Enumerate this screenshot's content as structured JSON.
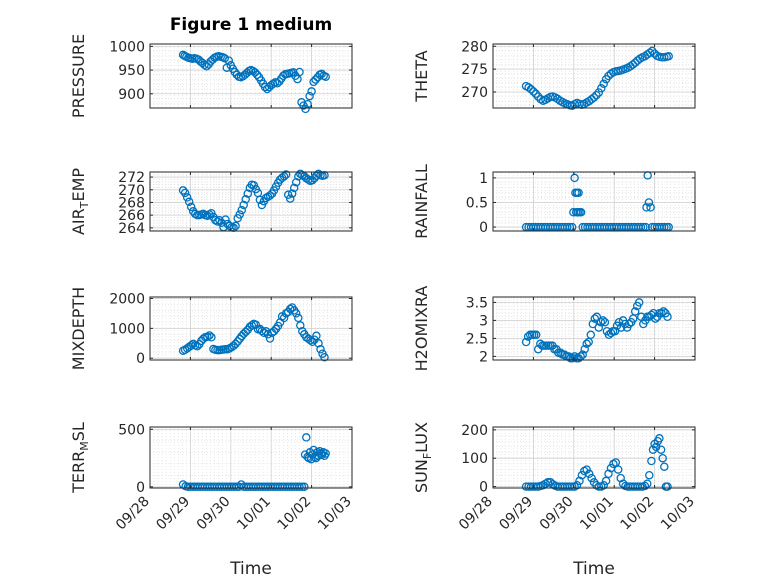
{
  "figure_title": "Figure 1 medium",
  "time_ticks": [
    "09/28",
    "09/29",
    "09/30",
    "10/01",
    "10/02",
    "10/03"
  ],
  "colors": {
    "marker": "#0072BD",
    "axis": "#262626",
    "grid": "#d9d9d9"
  },
  "chart_data": [
    {
      "type": "scatter",
      "title": "Figure 1 medium",
      "ylabel": "PRESSURE",
      "ylabel_parts": [
        "PRESSURE"
      ],
      "xlabel": "",
      "xlim": [
        0,
        5
      ],
      "ylim": [
        870,
        1005
      ],
      "yticks": [
        900,
        950,
        1000
      ],
      "xtick_labels_shown": false,
      "x": [
        0.82,
        0.86,
        0.9,
        0.95,
        1.0,
        1.05,
        1.1,
        1.15,
        1.2,
        1.25,
        1.3,
        1.35,
        1.4,
        1.45,
        1.5,
        1.55,
        1.6,
        1.65,
        1.7,
        1.75,
        1.8,
        1.85,
        1.9,
        1.95,
        2.0,
        2.05,
        2.1,
        2.15,
        2.2,
        2.25,
        2.3,
        2.35,
        2.4,
        2.45,
        2.5,
        2.55,
        2.6,
        2.65,
        2.7,
        2.75,
        2.8,
        2.85,
        2.9,
        2.95,
        3.0,
        3.05,
        3.1,
        3.15,
        3.2,
        3.25,
        3.3,
        3.35,
        3.4,
        3.45,
        3.5,
        3.55,
        3.6,
        3.65,
        3.7,
        3.75,
        3.8,
        3.85,
        3.9,
        3.95,
        4.0,
        4.05,
        4.1,
        4.15,
        4.2,
        4.25,
        4.3,
        4.35
      ],
      "y": [
        982,
        980,
        978,
        976,
        975,
        974,
        975,
        974,
        972,
        968,
        965,
        961,
        958,
        962,
        968,
        972,
        976,
        978,
        979,
        978,
        977,
        975,
        955,
        970,
        960,
        953,
        946,
        940,
        936,
        935,
        937,
        940,
        944,
        948,
        950,
        948,
        945,
        940,
        935,
        928,
        921,
        914,
        910,
        914,
        918,
        921,
        924,
        922,
        926,
        932,
        938,
        941,
        942,
        943,
        944,
        945,
        938,
        931,
        946,
        882,
        875,
        868,
        878,
        895,
        905,
        925,
        930,
        935,
        940,
        942,
        938,
        936
      ]
    },
    {
      "type": "scatter",
      "title": "",
      "ylabel": "THETA",
      "ylabel_parts": [
        "THETA"
      ],
      "xlabel": "",
      "xlim": [
        0,
        5
      ],
      "ylim": [
        266.5,
        280.5
      ],
      "yticks": [
        270,
        275,
        280
      ],
      "xtick_labels_shown": false,
      "x": [
        0.82,
        0.88,
        0.94,
        1.0,
        1.06,
        1.12,
        1.18,
        1.24,
        1.3,
        1.36,
        1.42,
        1.48,
        1.54,
        1.6,
        1.66,
        1.72,
        1.78,
        1.84,
        1.9,
        1.96,
        2.02,
        2.08,
        2.14,
        2.2,
        2.26,
        2.32,
        2.38,
        2.44,
        2.5,
        2.56,
        2.62,
        2.68,
        2.74,
        2.8,
        2.86,
        2.92,
        2.98,
        3.04,
        3.1,
        3.16,
        3.22,
        3.28,
        3.34,
        3.4,
        3.46,
        3.52,
        3.58,
        3.64,
        3.7,
        3.76,
        3.82,
        3.88,
        3.94,
        4.0,
        4.06,
        4.12,
        4.18,
        4.24,
        4.3,
        4.35
      ],
      "y": [
        271.3,
        271,
        270.6,
        270.1,
        269.6,
        269,
        268.4,
        268.1,
        268.3,
        268.6,
        268.9,
        269,
        268.8,
        268.5,
        268.1,
        267.8,
        267.5,
        267.3,
        267.1,
        267,
        267.3,
        267.6,
        267.4,
        267.2,
        267.4,
        267.7,
        268,
        268.4,
        268.8,
        269.3,
        269.9,
        270.8,
        271.8,
        272.8,
        273.5,
        274,
        274.3,
        274.5,
        274.6,
        274.7,
        274.9,
        275.1,
        275.3,
        275.6,
        276,
        276.4,
        276.9,
        277.3,
        277.6,
        277.8,
        278.2,
        278.6,
        279,
        278.4,
        277.9,
        277.7,
        277.6,
        277.6,
        277.7,
        277.8
      ]
    },
    {
      "type": "scatter",
      "title": "",
      "ylabel": "AIR_TEMP",
      "ylabel_parts": [
        "AIR",
        "T",
        "EMP"
      ],
      "xlabel": "",
      "xlim": [
        0,
        5
      ],
      "ylim": [
        263.5,
        272.8
      ],
      "yticks": [
        264,
        266,
        268,
        270,
        272
      ],
      "xtick_labels_shown": false,
      "x": [
        0.82,
        0.87,
        0.92,
        0.97,
        1.02,
        1.07,
        1.12,
        1.17,
        1.22,
        1.27,
        1.32,
        1.37,
        1.42,
        1.47,
        1.52,
        1.57,
        1.62,
        1.67,
        1.72,
        1.77,
        1.82,
        1.87,
        1.92,
        1.97,
        2.02,
        2.07,
        2.12,
        2.17,
        2.22,
        2.27,
        2.32,
        2.37,
        2.42,
        2.47,
        2.52,
        2.57,
        2.62,
        2.67,
        2.72,
        2.77,
        2.82,
        2.87,
        2.92,
        2.97,
        3.02,
        3.07,
        3.12,
        3.17,
        3.22,
        3.27,
        3.32,
        3.37,
        3.42,
        3.47,
        3.52,
        3.57,
        3.62,
        3.67,
        3.72,
        3.77,
        3.82,
        3.87,
        3.92,
        3.97,
        4.02,
        4.07,
        4.12,
        4.17,
        4.22,
        4.27,
        4.32
      ],
      "y": [
        269.9,
        269.5,
        268.8,
        268.1,
        267.3,
        266.6,
        266.2,
        266,
        266,
        266.1,
        266.2,
        266,
        265.9,
        266.1,
        266.3,
        265.7,
        265.2,
        265,
        265.2,
        264.8,
        264.1,
        265.3,
        264.6,
        264.3,
        264.1,
        264,
        264.3,
        265.5,
        266.1,
        266.8,
        267.6,
        268.5,
        269.4,
        270.3,
        270.8,
        270.7,
        270.1,
        269.5,
        268.4,
        267.6,
        268.2,
        268.7,
        268.9,
        269.1,
        269.4,
        269.9,
        270.5,
        271.1,
        271.6,
        271.9,
        272.1,
        272.4,
        269.2,
        268.6,
        269.4,
        270.3,
        271.2,
        272.1,
        272.5,
        272.3,
        272.1,
        271.8,
        271.6,
        271.4,
        271.5,
        271.8,
        272.2,
        272.5,
        272.3,
        272.2,
        272.3
      ]
    },
    {
      "type": "scatter",
      "title": "",
      "ylabel": "RAINFALL",
      "ylabel_parts": [
        "RAINFALL"
      ],
      "xlabel": "",
      "xlim": [
        0,
        5
      ],
      "ylim": [
        -0.08,
        1.12
      ],
      "yticks": [
        0,
        0.5,
        1
      ],
      "xtick_labels_shown": false,
      "x": [
        0.82,
        0.88,
        0.94,
        1.0,
        1.06,
        1.12,
        1.18,
        1.24,
        1.3,
        1.36,
        1.42,
        1.48,
        1.54,
        1.6,
        1.66,
        1.72,
        1.78,
        1.84,
        1.9,
        1.96,
        1.99,
        2.02,
        2.04,
        2.06,
        2.08,
        2.1,
        2.12,
        2.14,
        2.18,
        2.22,
        2.28,
        2.34,
        2.4,
        2.46,
        2.52,
        2.58,
        2.64,
        2.7,
        2.76,
        2.82,
        2.88,
        2.94,
        3.0,
        3.06,
        3.12,
        3.18,
        3.24,
        3.3,
        3.36,
        3.42,
        3.48,
        3.54,
        3.6,
        3.66,
        3.72,
        3.78,
        3.8,
        3.83,
        3.86,
        3.9,
        3.94,
        4.0,
        4.06,
        4.12,
        4.18,
        4.24,
        4.3,
        4.35
      ],
      "y": [
        0,
        0,
        0,
        0,
        0,
        0,
        0,
        0,
        0,
        0,
        0,
        0,
        0,
        0,
        0,
        0,
        0,
        0,
        0,
        0,
        0.3,
        1.0,
        0.7,
        0.3,
        0.7,
        0.3,
        0.7,
        0.3,
        0.3,
        0,
        0,
        0,
        0,
        0,
        0,
        0,
        0,
        0,
        0,
        0,
        0,
        0,
        0,
        0,
        0,
        0,
        0,
        0,
        0,
        0,
        0,
        0,
        0,
        0,
        0,
        0,
        0.4,
        1.05,
        0.5,
        0.4,
        0,
        0,
        0,
        0,
        0,
        0,
        0,
        0
      ]
    },
    {
      "type": "scatter",
      "title": "",
      "ylabel": "MIXDEPTH",
      "ylabel_parts": [
        "MIXDEPTH"
      ],
      "xlabel": "",
      "xlim": [
        0,
        5
      ],
      "ylim": [
        -60,
        2050
      ],
      "yticks": [
        0,
        1000,
        2000
      ],
      "xtick_labels_shown": false,
      "x": [
        0.82,
        0.87,
        0.92,
        0.97,
        1.02,
        1.07,
        1.12,
        1.17,
        1.22,
        1.27,
        1.32,
        1.37,
        1.42,
        1.47,
        1.52,
        1.57,
        1.62,
        1.67,
        1.72,
        1.77,
        1.82,
        1.87,
        1.92,
        1.97,
        2.02,
        2.07,
        2.12,
        2.17,
        2.22,
        2.27,
        2.32,
        2.37,
        2.42,
        2.47,
        2.52,
        2.57,
        2.62,
        2.67,
        2.72,
        2.77,
        2.82,
        2.87,
        2.92,
        2.97,
        3.02,
        3.07,
        3.12,
        3.17,
        3.22,
        3.27,
        3.32,
        3.37,
        3.42,
        3.47,
        3.52,
        3.57,
        3.62,
        3.67,
        3.72,
        3.77,
        3.82,
        3.87,
        3.92,
        3.97,
        4.02,
        4.07,
        4.12,
        4.17,
        4.22,
        4.27,
        4.32
      ],
      "y": [
        250,
        280,
        330,
        380,
        430,
        480,
        430,
        400,
        470,
        580,
        650,
        700,
        720,
        760,
        700,
        310,
        280,
        270,
        270,
        280,
        290,
        300,
        300,
        330,
        370,
        420,
        480,
        560,
        650,
        740,
        820,
        880,
        950,
        1050,
        1100,
        1150,
        1120,
        970,
        980,
        910,
        850,
        900,
        800,
        660,
        850,
        900,
        980,
        1080,
        1200,
        1400,
        1350,
        1500,
        1550,
        1650,
        1700,
        1600,
        1500,
        1350,
        1100,
        900,
        800,
        700,
        650,
        600,
        550,
        620,
        750,
        500,
        300,
        150,
        30
      ]
    },
    {
      "type": "scatter",
      "title": "",
      "ylabel": "H2OMIXRA",
      "ylabel_parts": [
        "H2OMIXRA"
      ],
      "xlabel": "",
      "xlim": [
        0,
        5
      ],
      "ylim": [
        1.9,
        3.65
      ],
      "yticks": [
        2,
        2.5,
        3,
        3.5
      ],
      "xtick_labels_shown": false,
      "x": [
        0.82,
        0.87,
        0.92,
        0.97,
        1.02,
        1.07,
        1.12,
        1.17,
        1.22,
        1.27,
        1.32,
        1.37,
        1.42,
        1.47,
        1.52,
        1.57,
        1.62,
        1.67,
        1.72,
        1.77,
        1.82,
        1.87,
        1.92,
        1.97,
        2.02,
        2.07,
        2.12,
        2.17,
        2.22,
        2.27,
        2.32,
        2.37,
        2.42,
        2.47,
        2.52,
        2.57,
        2.62,
        2.67,
        2.72,
        2.77,
        2.82,
        2.87,
        2.92,
        2.97,
        3.02,
        3.07,
        3.12,
        3.17,
        3.22,
        3.27,
        3.32,
        3.37,
        3.42,
        3.47,
        3.52,
        3.57,
        3.62,
        3.67,
        3.72,
        3.77,
        3.82,
        3.87,
        3.92,
        3.97,
        4.02,
        4.07,
        4.12,
        4.17,
        4.22,
        4.27,
        4.32
      ],
      "y": [
        2.4,
        2.55,
        2.6,
        2.6,
        2.6,
        2.6,
        2.2,
        2.35,
        2.3,
        2.3,
        2.3,
        2.3,
        2.3,
        2.3,
        2.2,
        2.2,
        2.1,
        2.1,
        2.05,
        2.05,
        2.0,
        2.0,
        1.95,
        1.95,
        2.0,
        1.95,
        1.95,
        2.0,
        2.05,
        2.2,
        2.35,
        2.4,
        2.6,
        2.9,
        3.05,
        3.1,
        2.8,
        2.95,
        3.0,
        2.95,
        2.7,
        2.6,
        2.65,
        2.7,
        2.7,
        2.85,
        2.95,
        2.8,
        3.0,
        2.9,
        2.8,
        2.9,
        2.95,
        3.05,
        3.25,
        3.4,
        3.5,
        3.1,
        2.9,
        3.0,
        3.1,
        3.1,
        3.15,
        3.2,
        3.05,
        3.1,
        3.2,
        3.2,
        3.25,
        3.2,
        3.1
      ]
    },
    {
      "type": "scatter",
      "title": "",
      "ylabel": "TERR_MSL",
      "ylabel_parts": [
        "TERR",
        "M",
        "SL"
      ],
      "xlabel": "Time",
      "xlim": [
        0,
        5
      ],
      "ylim": [
        -10,
        520
      ],
      "yticks": [
        0,
        500
      ],
      "xtick_labels_shown": true,
      "x": [
        0.82,
        0.88,
        0.94,
        1.0,
        1.06,
        1.12,
        1.18,
        1.24,
        1.3,
        1.36,
        1.42,
        1.48,
        1.54,
        1.6,
        1.66,
        1.72,
        1.78,
        1.84,
        1.9,
        1.96,
        2.02,
        2.08,
        2.14,
        2.2,
        2.26,
        2.32,
        2.38,
        2.44,
        2.5,
        2.56,
        2.62,
        2.68,
        2.74,
        2.8,
        2.86,
        2.92,
        2.98,
        3.04,
        3.1,
        3.16,
        3.22,
        3.28,
        3.34,
        3.4,
        3.46,
        3.52,
        3.58,
        3.64,
        3.7,
        3.76,
        3.82,
        3.84,
        3.87,
        3.9,
        3.93,
        3.96,
        3.99,
        4.02,
        4.05,
        4.08,
        4.11,
        4.14,
        4.17,
        4.2,
        4.23,
        4.26,
        4.29,
        4.32,
        4.35
      ],
      "y": [
        20,
        5,
        0,
        0,
        0,
        0,
        0,
        0,
        0,
        0,
        0,
        0,
        0,
        0,
        0,
        0,
        0,
        0,
        0,
        0,
        0,
        0,
        0,
        0,
        20,
        0,
        0,
        0,
        0,
        0,
        0,
        0,
        0,
        0,
        0,
        0,
        0,
        0,
        0,
        0,
        0,
        0,
        0,
        0,
        0,
        0,
        0,
        0,
        0,
        0,
        0,
        280,
        430,
        260,
        250,
        300,
        240,
        280,
        320,
        260,
        250,
        300,
        270,
        310,
        290,
        280,
        300,
        270,
        290
      ]
    },
    {
      "type": "scatter",
      "title": "",
      "ylabel": "SUN_FLUX",
      "ylabel_parts": [
        "SUN",
        "F",
        "LUX"
      ],
      "xlabel": "Time",
      "xlim": [
        0,
        5
      ],
      "ylim": [
        -5,
        210
      ],
      "yticks": [
        0,
        100,
        200
      ],
      "xtick_labels_shown": true,
      "x": [
        0.82,
        0.88,
        0.94,
        1.0,
        1.06,
        1.12,
        1.18,
        1.24,
        1.3,
        1.36,
        1.42,
        1.48,
        1.54,
        1.6,
        1.66,
        1.72,
        1.78,
        1.84,
        1.9,
        1.96,
        2.02,
        2.08,
        2.14,
        2.2,
        2.26,
        2.32,
        2.38,
        2.44,
        2.5,
        2.56,
        2.62,
        2.68,
        2.74,
        2.8,
        2.86,
        2.92,
        2.98,
        3.04,
        3.1,
        3.16,
        3.22,
        3.28,
        3.34,
        3.4,
        3.46,
        3.52,
        3.58,
        3.64,
        3.7,
        3.76,
        3.82,
        3.87,
        3.92,
        3.96,
        4.0,
        4.04,
        4.08,
        4.12,
        4.16,
        4.2,
        4.24,
        4.28,
        4.32
      ],
      "y": [
        0,
        0,
        0,
        0,
        0,
        0,
        2,
        5,
        10,
        15,
        15,
        8,
        3,
        0,
        0,
        0,
        0,
        0,
        0,
        0,
        0,
        5,
        20,
        40,
        55,
        60,
        45,
        30,
        15,
        5,
        0,
        0,
        5,
        20,
        45,
        65,
        80,
        85,
        60,
        30,
        10,
        2,
        0,
        0,
        0,
        0,
        0,
        0,
        0,
        2,
        10,
        40,
        90,
        130,
        150,
        140,
        160,
        170,
        130,
        100,
        70,
        0,
        0
      ]
    }
  ]
}
